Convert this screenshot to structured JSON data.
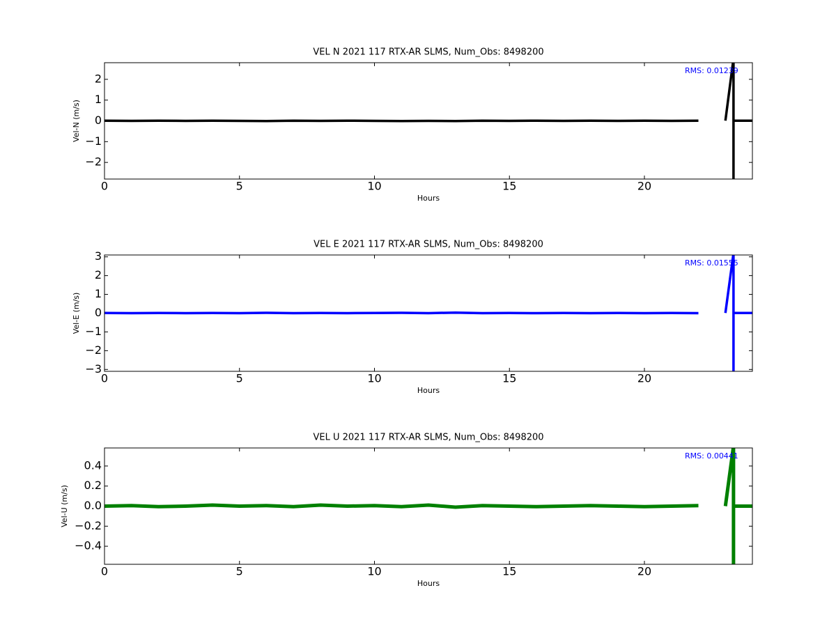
{
  "chart_data": [
    {
      "type": "line",
      "title": "VEL N 2021 117 RTX-AR  SLMS, Num_Obs: 8498200",
      "xlabel": "Hours",
      "ylabel": "Vel-N (m/s)",
      "annotation": "RMS:  0.01239",
      "x": [
        0,
        1,
        2,
        3,
        4,
        5,
        6,
        7,
        8,
        9,
        10,
        11,
        12,
        13,
        14,
        15,
        16,
        17,
        18,
        19,
        20,
        21,
        22,
        22.55,
        23,
        23.3,
        23.3,
        23.3,
        24
      ],
      "values": [
        0.01,
        0.0,
        0.01,
        0.0,
        0.01,
        0.0,
        -0.01,
        0.01,
        0.0,
        0.01,
        0.0,
        -0.01,
        0.0,
        -0.01,
        0.01,
        0.0,
        0.01,
        0.0,
        0.01,
        0.0,
        0.01,
        0.0,
        0.01,
        null,
        0.01,
        3,
        -3,
        0.01,
        0.01
      ],
      "color": "#000000",
      "xlim": [
        0,
        24
      ],
      "xticks": [
        0,
        5,
        10,
        15,
        20
      ],
      "ylim": [
        -2.8,
        2.8
      ],
      "yticks": [
        {
          "value": -2,
          "label": "−2"
        },
        {
          "value": -1,
          "label": "−1"
        },
        0,
        1,
        2
      ]
    },
    {
      "type": "line",
      "title": "VEL E 2021 117 RTX-AR  SLMS, Num_Obs: 8498200",
      "xlabel": "Hours",
      "ylabel": "Vel-E (m/s)",
      "annotation": "RMS:  0.01555",
      "x": [
        0,
        1,
        2,
        3,
        4,
        5,
        6,
        7,
        8,
        9,
        10,
        11,
        12,
        13,
        14,
        15,
        16,
        17,
        18,
        19,
        20,
        21,
        22,
        22.55,
        23,
        23.3,
        23.3,
        23.3,
        24
      ],
      "values": [
        0.01,
        0.0,
        0.01,
        0.0,
        0.01,
        0.0,
        0.02,
        0.0,
        0.01,
        0.0,
        0.01,
        0.02,
        0.0,
        0.03,
        0.0,
        0.01,
        0.0,
        0.01,
        0.0,
        0.01,
        0.0,
        0.01,
        0.0,
        null,
        0.01,
        3.2,
        -3.2,
        0.01,
        0.01
      ],
      "color": "#0000ff",
      "xlim": [
        0,
        24
      ],
      "xticks": [
        0,
        5,
        10,
        15,
        20
      ],
      "ylim": [
        -3.1,
        3.1
      ],
      "yticks": [
        {
          "value": -3,
          "label": "−3"
        },
        {
          "value": -2,
          "label": "−2"
        },
        {
          "value": -1,
          "label": "−1"
        },
        0,
        1,
        2,
        3
      ]
    },
    {
      "type": "line",
      "title": "VEL U 2021 117 RTX-AR  SLMS, Num_Obs: 8498200",
      "xlabel": "Hours",
      "ylabel": "Vel-U (m/s)",
      "annotation": "RMS:  0.00441",
      "x": [
        0,
        1,
        2,
        3,
        4,
        5,
        6,
        7,
        8,
        9,
        10,
        11,
        12,
        13,
        14,
        15,
        16,
        17,
        18,
        19,
        20,
        21,
        22,
        22.55,
        23,
        23.3,
        23.3,
        23.3,
        24
      ],
      "values": [
        0.0,
        0.005,
        -0.005,
        0.0,
        0.01,
        0.0,
        0.005,
        -0.005,
        0.01,
        0.0,
        0.005,
        -0.005,
        0.01,
        -0.01,
        0.005,
        0.0,
        -0.005,
        0.0,
        0.005,
        0.0,
        -0.005,
        0.0,
        0.005,
        null,
        0.0,
        0.6,
        -0.6,
        0.0,
        0.0
      ],
      "color": "#008000",
      "xlim": [
        0,
        24
      ],
      "xticks": [
        0,
        5,
        10,
        15,
        20
      ],
      "ylim": [
        -0.58,
        0.58
      ],
      "yticks": [
        {
          "value": -0.4,
          "label": "−0.4"
        },
        {
          "value": -0.2,
          "label": "−0.2"
        },
        {
          "value": 0,
          "label": "0.0"
        },
        0.2,
        0.4
      ]
    }
  ]
}
